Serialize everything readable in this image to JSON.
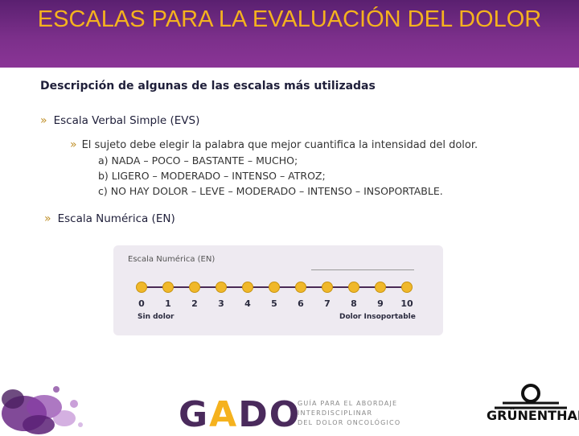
{
  "header": {
    "title": "ESCALAS PARA LA EVALUACIÓN DEL DOLOR"
  },
  "subtitle": "Descripción de algunas de las escalas más utilizadas",
  "bullet_glyph": "»",
  "evs": {
    "heading": "Escala Verbal Simple (EVS)",
    "description": "El sujeto debe elegir la palabra que mejor cuantifica la intensidad del dolor.",
    "options": [
      "a)  NADA – POCO – BASTANTE – MUCHO;",
      "b)  LIGERO – MODERADO – INTENSO – ATROZ;",
      "c)  NO HAY DOLOR – LEVE – MODERADO – INTENSO – INSOPORTABLE."
    ]
  },
  "en": {
    "heading": "Escala Numérica (EN)",
    "scale": {
      "title": "Escala Numérica (EN)",
      "numbers": [
        "0",
        "1",
        "2",
        "3",
        "4",
        "5",
        "6",
        "7",
        "8",
        "9",
        "10"
      ],
      "min_label": "Sin dolor",
      "max_label": "Dolor Insoportable"
    }
  },
  "footer": {
    "gado_prefix": "G",
    "gado_a": "A",
    "gado_suffix": "DO",
    "gado_tagline": [
      "GUÍA PARA EL ABORDAJE",
      "INTERDISCIPLINAR",
      "DEL DOLOR ONCOLÓGICO"
    ],
    "grunenthal": "GRÜNENTHAL"
  },
  "colors": {
    "header_bg": "#7b2f8a",
    "header_text": "#f5b21e",
    "accent_gold": "#f0b82a",
    "scale_line": "#4a2a55",
    "card_bg": "#eeeaf1"
  }
}
